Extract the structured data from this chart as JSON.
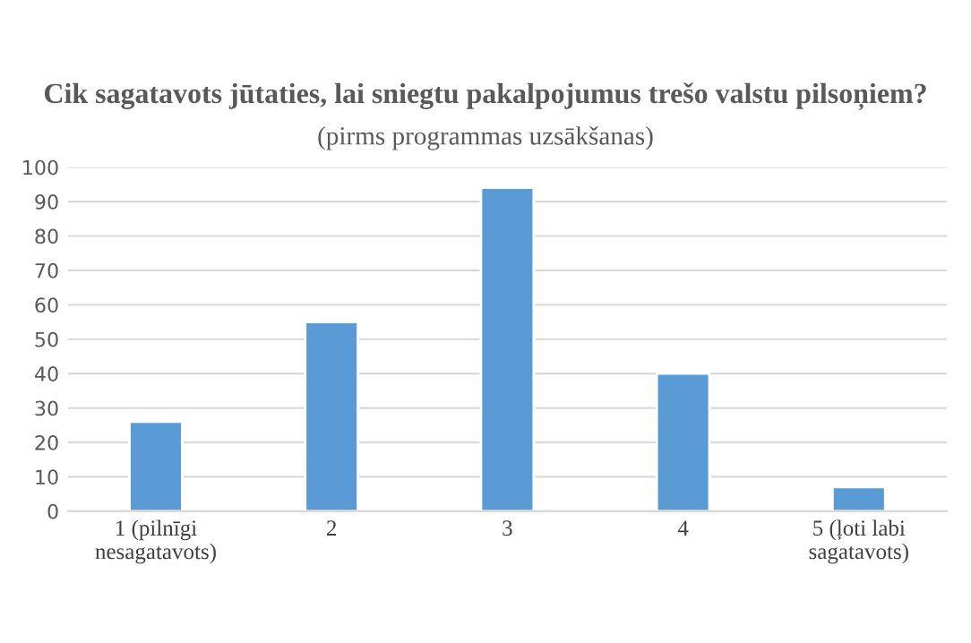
{
  "chart_data": {
    "type": "bar",
    "title": "Cik sagatavots jūtaties, lai sniegtu pakalpojumus trešo valstu pilsoņiem?",
    "subtitle": "(pirms programmas uzsākšanas)",
    "categories": [
      "1 (pilnīgi nesagatavots)",
      "2",
      "3",
      "4",
      "5 (ļoti labi sagatavots)"
    ],
    "values": [
      26,
      55,
      94,
      40,
      7
    ],
    "color": "#5b9bd5",
    "ylim": [
      0,
      100
    ],
    "yticks": [
      0,
      10,
      20,
      30,
      40,
      50,
      60,
      70,
      80,
      90,
      100
    ],
    "grid": "y",
    "legend": false
  }
}
